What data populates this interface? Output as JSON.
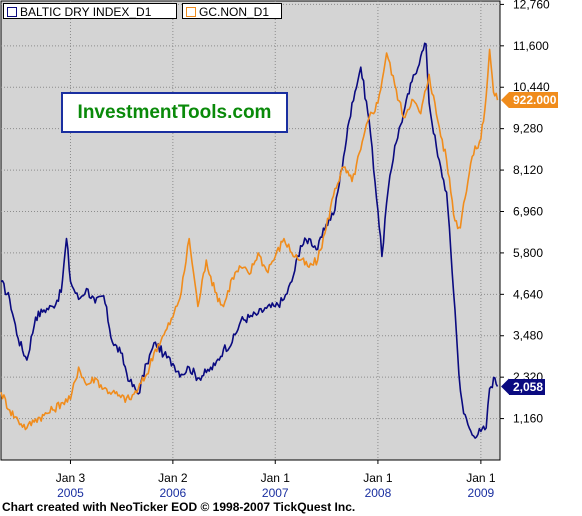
{
  "legend": [
    {
      "label": "BALTIC DRY INDEX_D1",
      "color": "#0a0a80"
    },
    {
      "label": "GC.NON_D1",
      "color": "#f08c1c"
    }
  ],
  "watermark": "InvestmentTools.com",
  "footer": "Chart created with NeoTicker EOD © 1998-2007 TickQuest Inc.",
  "colors": {
    "plot_bg": "#d4d4d4",
    "grid": "#8c8c8c",
    "bdi": "#0a0a80",
    "gold": "#f08c1c"
  },
  "chart_data": {
    "type": "line",
    "title": "",
    "y_axis": {
      "side": "right",
      "ticks": [
        "12,760",
        "11,600",
        "10,440",
        "9,280",
        "8,120",
        "6,960",
        "5,800",
        "4,640",
        "3,480",
        "2,320",
        "1,160"
      ],
      "min": 0,
      "max": 12760,
      "grid": true
    },
    "x_axis": {
      "labels": [
        {
          "date": "2005-01-03",
          "line1": "Jan 3",
          "line2": "2005"
        },
        {
          "date": "2006-01-02",
          "line1": "Jan 2",
          "line2": "2006"
        },
        {
          "date": "2007-01-01",
          "line1": "Jan 1",
          "line2": "2007"
        },
        {
          "date": "2008-01-01",
          "line1": "Jan 1",
          "line2": "2008"
        },
        {
          "date": "2009-01-01",
          "line1": "Jan 1",
          "line2": "2009"
        }
      ],
      "grid": true
    },
    "last_values": [
      {
        "series": "BALTIC DRY INDEX_D1",
        "label": "2,058",
        "value": 2058
      },
      {
        "series": "GC.NON_D1",
        "label": "922.000",
        "value": 10080
      }
    ],
    "series": [
      {
        "name": "BALTIC DRY INDEX_D1",
        "color": "#0a0a80",
        "points": [
          [
            "2004-05-01",
            5000
          ],
          [
            "2004-06-01",
            4500
          ],
          [
            "2004-07-01",
            3400
          ],
          [
            "2004-08-01",
            2800
          ],
          [
            "2004-09-01",
            4000
          ],
          [
            "2004-10-01",
            4200
          ],
          [
            "2004-11-01",
            4300
          ],
          [
            "2004-12-01",
            4700
          ],
          [
            "2004-12-20",
            6200
          ],
          [
            "2005-01-03",
            5000
          ],
          [
            "2005-02-01",
            4500
          ],
          [
            "2005-03-01",
            4800
          ],
          [
            "2005-04-01",
            4400
          ],
          [
            "2005-05-01",
            4600
          ],
          [
            "2005-06-01",
            3300
          ],
          [
            "2005-07-01",
            3000
          ],
          [
            "2005-08-01",
            2200
          ],
          [
            "2005-09-01",
            1850
          ],
          [
            "2005-10-01",
            2700
          ],
          [
            "2005-11-01",
            3300
          ],
          [
            "2005-12-01",
            2950
          ],
          [
            "2006-01-02",
            2700
          ],
          [
            "2006-02-01",
            2400
          ],
          [
            "2006-03-01",
            2600
          ],
          [
            "2006-04-01",
            2300
          ],
          [
            "2006-05-01",
            2450
          ],
          [
            "2006-06-01",
            2650
          ],
          [
            "2006-07-01",
            3100
          ],
          [
            "2006-08-01",
            3300
          ],
          [
            "2006-09-01",
            3900
          ],
          [
            "2006-10-01",
            4000
          ],
          [
            "2006-11-01",
            4100
          ],
          [
            "2006-12-01",
            4250
          ],
          [
            "2007-01-01",
            4300
          ],
          [
            "2007-02-01",
            4500
          ],
          [
            "2007-03-01",
            5000
          ],
          [
            "2007-04-01",
            6000
          ],
          [
            "2007-05-01",
            6200
          ],
          [
            "2007-06-01",
            5900
          ],
          [
            "2007-07-01",
            6600
          ],
          [
            "2007-08-01",
            7000
          ],
          [
            "2007-09-01",
            8500
          ],
          [
            "2007-10-01",
            10000
          ],
          [
            "2007-11-01",
            11000
          ],
          [
            "2007-12-01",
            9500
          ],
          [
            "2008-01-01",
            7000
          ],
          [
            "2008-01-15",
            5700
          ],
          [
            "2008-02-01",
            7200
          ],
          [
            "2008-03-01",
            8800
          ],
          [
            "2008-04-01",
            9700
          ],
          [
            "2008-05-01",
            10600
          ],
          [
            "2008-06-01",
            11300
          ],
          [
            "2008-06-20",
            11650
          ],
          [
            "2008-07-01",
            10000
          ],
          [
            "2008-08-01",
            8500
          ],
          [
            "2008-09-01",
            7500
          ],
          [
            "2008-10-01",
            4200
          ],
          [
            "2008-10-15",
            2400
          ],
          [
            "2008-11-01",
            1300
          ],
          [
            "2008-12-01",
            700
          ],
          [
            "2009-01-01",
            800
          ],
          [
            "2009-01-20",
            900
          ],
          [
            "2009-02-01",
            2000
          ],
          [
            "2009-02-20",
            2300
          ],
          [
            "2009-03-01",
            2058
          ]
        ]
      },
      {
        "name": "GC.NON_D1",
        "color": "#f08c1c",
        "points": [
          [
            "2004-05-01",
            1900
          ],
          [
            "2004-06-01",
            1400
          ],
          [
            "2004-07-01",
            1100
          ],
          [
            "2004-08-01",
            900
          ],
          [
            "2004-09-01",
            1150
          ],
          [
            "2004-10-01",
            1250
          ],
          [
            "2004-11-01",
            1400
          ],
          [
            "2004-12-01",
            1600
          ],
          [
            "2005-01-03",
            1700
          ],
          [
            "2005-02-01",
            2600
          ],
          [
            "2005-03-01",
            2100
          ],
          [
            "2005-04-01",
            2300
          ],
          [
            "2005-05-01",
            2000
          ],
          [
            "2005-06-01",
            1900
          ],
          [
            "2005-07-01",
            1750
          ],
          [
            "2005-08-01",
            1700
          ],
          [
            "2005-09-01",
            2000
          ],
          [
            "2005-10-01",
            2400
          ],
          [
            "2005-11-01",
            3100
          ],
          [
            "2005-12-01",
            3500
          ],
          [
            "2006-01-02",
            4000
          ],
          [
            "2006-02-01",
            4700
          ],
          [
            "2006-03-01",
            6200
          ],
          [
            "2006-04-01",
            4300
          ],
          [
            "2006-05-01",
            5600
          ],
          [
            "2006-06-01",
            4700
          ],
          [
            "2006-07-01",
            4300
          ],
          [
            "2006-08-01",
            5100
          ],
          [
            "2006-09-01",
            5400
          ],
          [
            "2006-10-01",
            5200
          ],
          [
            "2006-11-01",
            5800
          ],
          [
            "2006-12-01",
            5300
          ],
          [
            "2007-01-01",
            5700
          ],
          [
            "2007-02-01",
            6200
          ],
          [
            "2007-03-01",
            5800
          ],
          [
            "2007-04-01",
            5600
          ],
          [
            "2007-05-01",
            5400
          ],
          [
            "2007-06-01",
            5600
          ],
          [
            "2007-07-01",
            6500
          ],
          [
            "2007-08-01",
            7600
          ],
          [
            "2007-09-01",
            8200
          ],
          [
            "2007-10-01",
            7800
          ],
          [
            "2007-11-01",
            8700
          ],
          [
            "2007-12-01",
            9600
          ],
          [
            "2008-01-01",
            10000
          ],
          [
            "2008-02-01",
            11400
          ],
          [
            "2008-03-01",
            10500
          ],
          [
            "2008-04-01",
            9600
          ],
          [
            "2008-05-01",
            10100
          ],
          [
            "2008-06-01",
            9700
          ],
          [
            "2008-07-01",
            10800
          ],
          [
            "2008-08-01",
            9500
          ],
          [
            "2008-09-01",
            8400
          ],
          [
            "2008-10-01",
            6700
          ],
          [
            "2008-10-20",
            6500
          ],
          [
            "2008-11-01",
            7200
          ],
          [
            "2008-12-01",
            8500
          ],
          [
            "2009-01-01",
            9000
          ],
          [
            "2009-01-20",
            10200
          ],
          [
            "2009-02-01",
            11500
          ],
          [
            "2009-02-15",
            10300
          ],
          [
            "2009-03-01",
            10080
          ]
        ]
      }
    ]
  }
}
